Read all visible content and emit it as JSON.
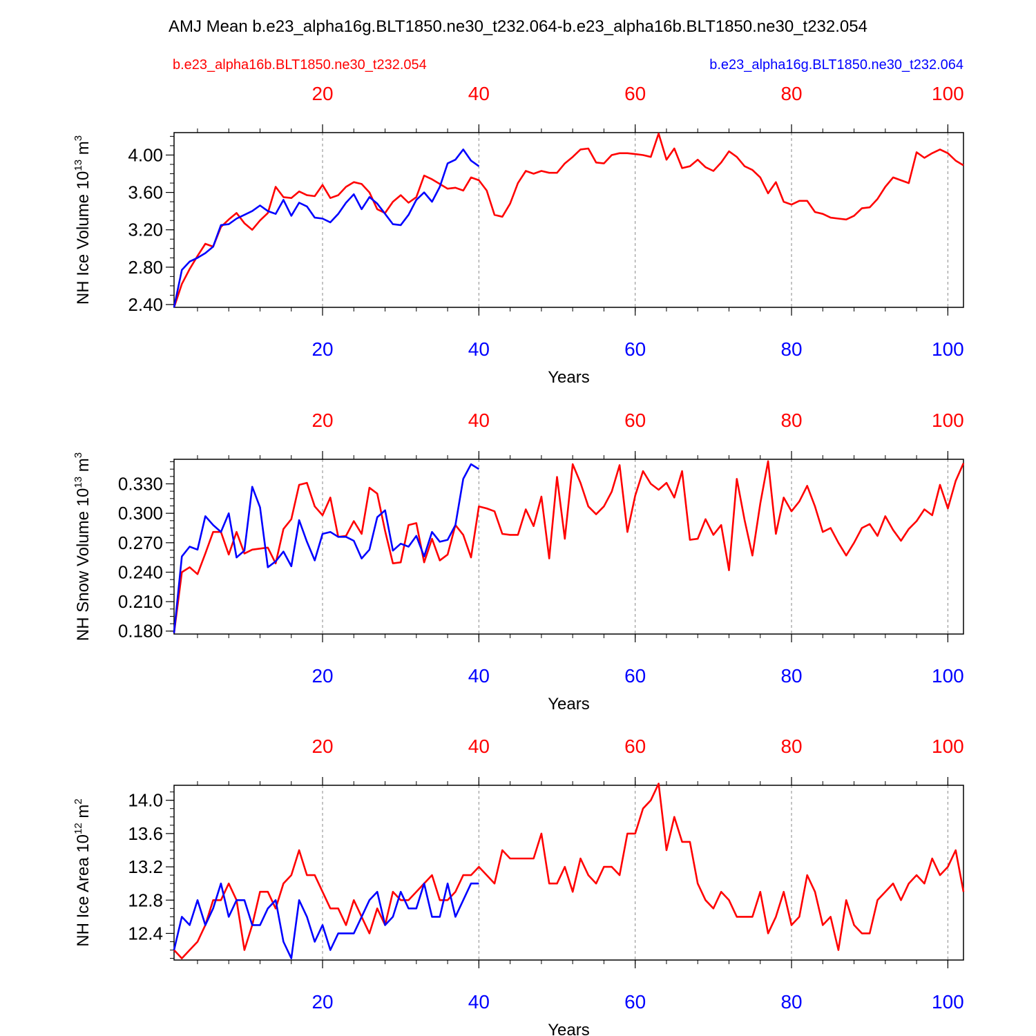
{
  "title": "AMJ Mean b.e23_alpha16g.BLT1850.ne30_t232.064-b.e23_alpha16b.BLT1850.ne30_t232.054",
  "legend": {
    "left_label": "b.e23_alpha16b.BLT1850.ne30_t232.054",
    "right_label": "b.e23_alpha16g.BLT1850.ne30_t232.064",
    "left_color": "#ff0000",
    "right_color": "#0000ff"
  },
  "colors": {
    "red": "#ff0000",
    "blue": "#0000ff",
    "axis": "#000000",
    "grid": "#888888"
  },
  "chart_data": [
    {
      "type": "line",
      "ylabel": "NH Ice Volume 10",
      "ylabel_exp": "13",
      "ylabel_unit": " m",
      "ylabel_unit_exp": "3",
      "xlabel": "Years",
      "xlim": [
        1,
        102
      ],
      "ylim": [
        2.37,
        4.24
      ],
      "yticks": [
        2.4,
        2.8,
        3.2,
        3.6,
        4.0
      ],
      "ytick_labels": [
        "2.40",
        "2.80",
        "3.20",
        "3.60",
        "4.00"
      ],
      "xticks": [
        20,
        40,
        60,
        80,
        100
      ],
      "xtick_labels": [
        "20",
        "40",
        "60",
        "80",
        "100"
      ],
      "grid": "vertical dashed at x ticks",
      "series": [
        {
          "color": "#ff0000",
          "values": [
            2.37,
            2.62,
            2.78,
            2.92,
            3.05,
            3.02,
            3.23,
            3.31,
            3.38,
            3.27,
            3.2,
            3.3,
            3.38,
            3.66,
            3.55,
            3.54,
            3.61,
            3.57,
            3.56,
            3.68,
            3.54,
            3.57,
            3.66,
            3.71,
            3.69,
            3.6,
            3.42,
            3.38,
            3.5,
            3.57,
            3.49,
            3.55,
            3.78,
            3.74,
            3.69,
            3.64,
            3.65,
            3.62,
            3.76,
            3.73,
            3.62,
            3.36,
            3.34,
            3.48,
            3.7,
            3.83,
            3.8,
            3.83,
            3.81,
            3.81,
            3.91,
            3.98,
            4.06,
            4.07,
            3.92,
            3.91,
            4.0,
            4.02,
            4.02,
            4.01,
            4.0,
            3.98,
            4.23,
            3.95,
            4.07,
            3.86,
            3.88,
            3.95,
            3.87,
            3.83,
            3.92,
            4.04,
            3.98,
            3.88,
            3.84,
            3.76,
            3.59,
            3.71,
            3.5,
            3.47,
            3.51,
            3.51,
            3.39,
            3.37,
            3.33,
            3.32,
            3.31,
            3.35,
            3.43,
            3.44,
            3.53,
            3.66,
            3.76,
            3.73,
            3.7,
            4.03,
            3.97,
            4.02,
            4.06,
            4.02,
            3.94,
            3.89
          ]
        },
        {
          "color": "#0000ff",
          "values": [
            2.37,
            2.77,
            2.86,
            2.9,
            2.95,
            3.02,
            3.25,
            3.26,
            3.32,
            3.36,
            3.4,
            3.46,
            3.4,
            3.37,
            3.52,
            3.35,
            3.49,
            3.45,
            3.33,
            3.32,
            3.28,
            3.37,
            3.49,
            3.58,
            3.42,
            3.55,
            3.48,
            3.37,
            3.26,
            3.25,
            3.36,
            3.52,
            3.6,
            3.5,
            3.66,
            3.91,
            3.95,
            4.06,
            3.94,
            3.88
          ]
        }
      ]
    },
    {
      "type": "line",
      "ylabel": "NH Snow Volume 10",
      "ylabel_exp": "13",
      "ylabel_unit": " m",
      "ylabel_unit_exp": "3",
      "xlabel": "Years",
      "xlim": [
        1,
        102
      ],
      "ylim": [
        0.177,
        0.355
      ],
      "yticks": [
        0.18,
        0.21,
        0.24,
        0.27,
        0.3,
        0.33
      ],
      "ytick_labels": [
        "0.180",
        "0.210",
        "0.240",
        "0.270",
        "0.300",
        "0.330"
      ],
      "xticks": [
        20,
        40,
        60,
        80,
        100
      ],
      "xtick_labels": [
        "20",
        "40",
        "60",
        "80",
        "100"
      ],
      "grid": "vertical dashed at x ticks",
      "series": [
        {
          "color": "#ff0000",
          "values": [
            0.178,
            0.24,
            0.245,
            0.238,
            0.259,
            0.281,
            0.281,
            0.258,
            0.281,
            0.259,
            0.263,
            0.264,
            0.265,
            0.249,
            0.284,
            0.294,
            0.329,
            0.331,
            0.307,
            0.298,
            0.316,
            0.276,
            0.277,
            0.292,
            0.279,
            0.326,
            0.32,
            0.282,
            0.249,
            0.25,
            0.288,
            0.29,
            0.25,
            0.274,
            0.252,
            0.258,
            0.288,
            0.278,
            0.255,
            0.307,
            0.305,
            0.302,
            0.279,
            0.278,
            0.278,
            0.304,
            0.287,
            0.317,
            0.254,
            0.337,
            0.274,
            0.35,
            0.331,
            0.307,
            0.299,
            0.307,
            0.322,
            0.349,
            0.281,
            0.318,
            0.343,
            0.33,
            0.324,
            0.331,
            0.316,
            0.343,
            0.273,
            0.274,
            0.294,
            0.278,
            0.288,
            0.242,
            0.335,
            0.293,
            0.257,
            0.31,
            0.353,
            0.279,
            0.316,
            0.302,
            0.312,
            0.328,
            0.307,
            0.281,
            0.285,
            0.27,
            0.257,
            0.27,
            0.285,
            0.289,
            0.277,
            0.297,
            0.283,
            0.272,
            0.284,
            0.292,
            0.304,
            0.298,
            0.329,
            0.305,
            0.333,
            0.351
          ]
        },
        {
          "color": "#0000ff",
          "values": [
            0.178,
            0.256,
            0.266,
            0.263,
            0.297,
            0.288,
            0.281,
            0.3,
            0.255,
            0.262,
            0.327,
            0.306,
            0.245,
            0.251,
            0.261,
            0.246,
            0.293,
            0.271,
            0.252,
            0.279,
            0.281,
            0.276,
            0.276,
            0.272,
            0.254,
            0.263,
            0.296,
            0.303,
            0.262,
            0.269,
            0.266,
            0.277,
            0.256,
            0.281,
            0.271,
            0.273,
            0.288,
            0.335,
            0.35,
            0.345
          ]
        }
      ]
    },
    {
      "type": "line",
      "ylabel": "NH Ice Area 10",
      "ylabel_exp": "12",
      "ylabel_unit": " m",
      "ylabel_unit_exp": "2",
      "xlabel": "Years",
      "xlim": [
        1,
        102
      ],
      "ylim": [
        12.08,
        14.18
      ],
      "yticks": [
        12.4,
        12.8,
        13.2,
        13.6,
        14.0
      ],
      "ytick_labels": [
        "12.4",
        "12.8",
        "13.2",
        "13.6",
        "14.0"
      ],
      "xticks": [
        20,
        40,
        60,
        80,
        100
      ],
      "xtick_labels": [
        "20",
        "40",
        "60",
        "80",
        "100"
      ],
      "grid": "vertical dashed at x ticks",
      "series": [
        {
          "color": "#ff0000",
          "values": [
            12.2,
            12.1,
            12.2,
            12.3,
            12.5,
            12.8,
            12.8,
            13.0,
            12.8,
            12.2,
            12.5,
            12.9,
            12.9,
            12.7,
            13.0,
            13.1,
            13.4,
            13.1,
            13.1,
            12.9,
            12.7,
            12.7,
            12.5,
            12.8,
            12.6,
            12.4,
            12.7,
            12.5,
            12.9,
            12.8,
            12.8,
            12.9,
            13.0,
            13.1,
            12.8,
            12.8,
            12.9,
            13.1,
            13.1,
            13.2,
            13.1,
            13.0,
            13.4,
            13.3,
            13.3,
            13.3,
            13.3,
            13.6,
            13.0,
            13.0,
            13.2,
            12.9,
            13.3,
            13.1,
            13.0,
            13.2,
            13.2,
            13.1,
            13.6,
            13.6,
            13.9,
            14.0,
            14.2,
            13.4,
            13.8,
            13.5,
            13.5,
            13.0,
            12.8,
            12.7,
            12.9,
            12.8,
            12.6,
            12.6,
            12.6,
            12.9,
            12.4,
            12.6,
            12.9,
            12.5,
            12.6,
            13.1,
            12.9,
            12.5,
            12.6,
            12.2,
            12.8,
            12.5,
            12.4,
            12.4,
            12.8,
            12.9,
            13.0,
            12.8,
            13.0,
            13.1,
            13.0,
            13.3,
            13.1,
            13.2,
            13.4,
            12.9
          ]
        },
        {
          "color": "#0000ff",
          "values": [
            12.2,
            12.6,
            12.5,
            12.8,
            12.5,
            12.7,
            13.0,
            12.6,
            12.8,
            12.8,
            12.5,
            12.5,
            12.7,
            12.8,
            12.3,
            12.1,
            12.8,
            12.6,
            12.3,
            12.5,
            12.2,
            12.4,
            12.4,
            12.4,
            12.6,
            12.8,
            12.9,
            12.5,
            12.6,
            12.9,
            12.7,
            12.7,
            13.0,
            12.6,
            12.6,
            13.0,
            12.6,
            12.8,
            13.0,
            13.0
          ]
        }
      ]
    }
  ]
}
